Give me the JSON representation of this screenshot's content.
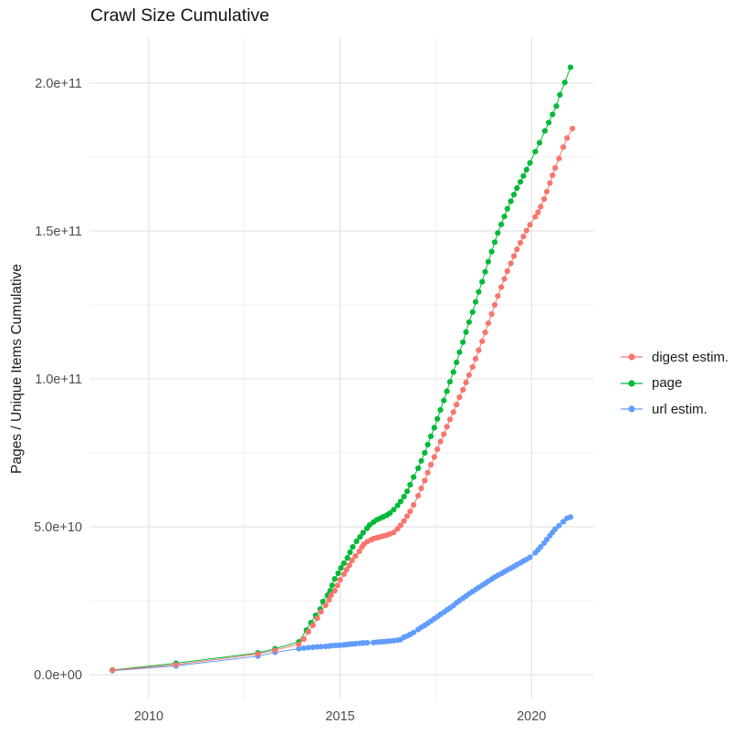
{
  "chart_data": {
    "type": "scatter",
    "title": "Crawl Size Cumulative",
    "xlabel": "",
    "ylabel": "Pages / Unique Items Cumulative",
    "value_unit_e9": "values are billions (1e9) of pages / unique items",
    "grid": true,
    "legend_position": "right",
    "xlim": [
      2008.45,
      2021.64
    ],
    "ylim_e9": [
      -8.3,
      215.4
    ],
    "xticks": [
      {
        "value": 2010,
        "label": "2010"
      },
      {
        "value": 2015,
        "label": "2015"
      },
      {
        "value": 2020,
        "label": "2020"
      }
    ],
    "xminor": [
      2012.5,
      2017.5
    ],
    "yticks": [
      {
        "value_e9": 0,
        "label": "0.0e+00"
      },
      {
        "value_e9": 50,
        "label": "5.0e+10"
      },
      {
        "value_e9": 100,
        "label": "1.0e+11"
      },
      {
        "value_e9": 150,
        "label": "1.5e+11"
      },
      {
        "value_e9": 200,
        "label": "2.0e+11"
      }
    ],
    "yminor_e9": [
      25,
      75,
      125,
      175
    ],
    "series": [
      {
        "name": "digest estim.",
        "color": "#F8766D",
        "points": [
          [
            2009.05,
            1.5
          ],
          [
            2010.71,
            3.4
          ],
          [
            2012.85,
            7.0
          ],
          [
            2013.3,
            8.3
          ],
          [
            2013.92,
            10.3
          ],
          [
            2014.05,
            12.0
          ],
          [
            2014.17,
            14.5
          ],
          [
            2014.29,
            16.7
          ],
          [
            2014.4,
            19.1
          ],
          [
            2014.5,
            21.3
          ],
          [
            2014.62,
            23.5
          ],
          [
            2014.71,
            25.3
          ],
          [
            2014.76,
            26.9
          ],
          [
            2014.86,
            28.4
          ],
          [
            2014.93,
            30.2
          ],
          [
            2015.0,
            32.1
          ],
          [
            2015.1,
            34.0
          ],
          [
            2015.17,
            35.5
          ],
          [
            2015.24,
            37.0
          ],
          [
            2015.31,
            38.6
          ],
          [
            2015.4,
            40.1
          ],
          [
            2015.5,
            41.7
          ],
          [
            2015.57,
            43.2
          ],
          [
            2015.62,
            44.1
          ],
          [
            2015.71,
            45.0
          ],
          [
            2015.81,
            45.6
          ],
          [
            2015.87,
            46.0
          ],
          [
            2015.96,
            46.3
          ],
          [
            2016.05,
            46.6
          ],
          [
            2016.13,
            46.9
          ],
          [
            2016.22,
            47.2
          ],
          [
            2016.3,
            47.6
          ],
          [
            2016.4,
            48.1
          ],
          [
            2016.5,
            49.3
          ],
          [
            2016.58,
            50.5
          ],
          [
            2016.67,
            52.0
          ],
          [
            2016.75,
            53.6
          ],
          [
            2016.83,
            55.2
          ],
          [
            2016.92,
            57.4
          ],
          [
            2017.04,
            60.5
          ],
          [
            2017.12,
            63.0
          ],
          [
            2017.21,
            65.6
          ],
          [
            2017.29,
            68.3
          ],
          [
            2017.37,
            71.0
          ],
          [
            2017.46,
            73.6
          ],
          [
            2017.54,
            76.2
          ],
          [
            2017.62,
            78.8
          ],
          [
            2017.71,
            81.3
          ],
          [
            2017.79,
            83.8
          ],
          [
            2017.87,
            86.3
          ],
          [
            2017.96,
            88.8
          ],
          [
            2018.04,
            91.3
          ],
          [
            2018.12,
            93.8
          ],
          [
            2018.21,
            96.3
          ],
          [
            2018.29,
            98.8
          ],
          [
            2018.37,
            101.3
          ],
          [
            2018.46,
            104.0
          ],
          [
            2018.54,
            106.8
          ],
          [
            2018.62,
            109.7
          ],
          [
            2018.71,
            112.7
          ],
          [
            2018.79,
            115.7
          ],
          [
            2018.87,
            118.8
          ],
          [
            2018.96,
            121.9
          ],
          [
            2019.04,
            125.0
          ],
          [
            2019.12,
            128.0
          ],
          [
            2019.21,
            131.0
          ],
          [
            2019.29,
            133.8
          ],
          [
            2019.37,
            136.4
          ],
          [
            2019.46,
            139.0
          ],
          [
            2019.54,
            141.5
          ],
          [
            2019.62,
            143.8
          ],
          [
            2019.71,
            146.0
          ],
          [
            2019.79,
            148.1
          ],
          [
            2019.87,
            150.1
          ],
          [
            2019.96,
            152.1
          ],
          [
            2020.1,
            154.8
          ],
          [
            2020.17,
            156.3
          ],
          [
            2020.24,
            158.2
          ],
          [
            2020.33,
            160.8
          ],
          [
            2020.4,
            163.3
          ],
          [
            2020.48,
            166.2
          ],
          [
            2020.55,
            168.8
          ],
          [
            2020.62,
            171.3
          ],
          [
            2020.72,
            174.5
          ],
          [
            2020.83,
            178.3
          ],
          [
            2020.93,
            181.4
          ],
          [
            2021.07,
            184.6
          ]
        ]
      },
      {
        "name": "page",
        "color": "#00BA38",
        "points": [
          [
            2009.05,
            1.6
          ],
          [
            2010.71,
            3.9
          ],
          [
            2012.85,
            7.4
          ],
          [
            2013.3,
            8.8
          ],
          [
            2013.92,
            11.1
          ],
          [
            2014.12,
            15.1
          ],
          [
            2014.24,
            17.6
          ],
          [
            2014.36,
            20.1
          ],
          [
            2014.48,
            22.2
          ],
          [
            2014.55,
            24.7
          ],
          [
            2014.67,
            26.9
          ],
          [
            2014.74,
            28.4
          ],
          [
            2014.79,
            30.2
          ],
          [
            2014.86,
            32.4
          ],
          [
            2014.95,
            34.3
          ],
          [
            2015.02,
            36.1
          ],
          [
            2015.1,
            37.7
          ],
          [
            2015.19,
            39.5
          ],
          [
            2015.26,
            41.4
          ],
          [
            2015.33,
            43.2
          ],
          [
            2015.43,
            45.1
          ],
          [
            2015.52,
            46.6
          ],
          [
            2015.6,
            48.0
          ],
          [
            2015.7,
            49.5
          ],
          [
            2015.77,
            50.6
          ],
          [
            2015.87,
            51.6
          ],
          [
            2015.96,
            52.4
          ],
          [
            2016.05,
            52.9
          ],
          [
            2016.13,
            53.4
          ],
          [
            2016.22,
            53.9
          ],
          [
            2016.3,
            54.6
          ],
          [
            2016.4,
            55.8
          ],
          [
            2016.5,
            57.2
          ],
          [
            2016.58,
            58.6
          ],
          [
            2016.67,
            60.2
          ],
          [
            2016.75,
            62.0
          ],
          [
            2016.83,
            64.2
          ],
          [
            2016.92,
            66.8
          ],
          [
            2017.04,
            69.8
          ],
          [
            2017.12,
            72.3
          ],
          [
            2017.21,
            75.0
          ],
          [
            2017.29,
            77.8
          ],
          [
            2017.37,
            80.6
          ],
          [
            2017.46,
            83.5
          ],
          [
            2017.54,
            86.5
          ],
          [
            2017.62,
            89.5
          ],
          [
            2017.71,
            92.7
          ],
          [
            2017.79,
            95.8
          ],
          [
            2017.87,
            99.0
          ],
          [
            2017.96,
            102.3
          ],
          [
            2018.04,
            105.6
          ],
          [
            2018.12,
            109.0
          ],
          [
            2018.21,
            112.4
          ],
          [
            2018.29,
            115.8
          ],
          [
            2018.37,
            119.2
          ],
          [
            2018.46,
            122.6
          ],
          [
            2018.54,
            126.0
          ],
          [
            2018.62,
            129.4
          ],
          [
            2018.71,
            132.8
          ],
          [
            2018.79,
            136.2
          ],
          [
            2018.87,
            139.6
          ],
          [
            2018.96,
            143.0
          ],
          [
            2019.04,
            146.2
          ],
          [
            2019.12,
            149.3
          ],
          [
            2019.21,
            152.2
          ],
          [
            2019.29,
            154.9
          ],
          [
            2019.37,
            157.5
          ],
          [
            2019.46,
            160.0
          ],
          [
            2019.54,
            162.3
          ],
          [
            2019.62,
            164.5
          ],
          [
            2019.71,
            166.6
          ],
          [
            2019.79,
            168.6
          ],
          [
            2019.87,
            170.7
          ],
          [
            2019.96,
            173.0
          ],
          [
            2020.1,
            176.8
          ],
          [
            2020.21,
            179.8
          ],
          [
            2020.35,
            183.8
          ],
          [
            2020.45,
            186.6
          ],
          [
            2020.55,
            189.4
          ],
          [
            2020.65,
            192.2
          ],
          [
            2020.74,
            196.0
          ],
          [
            2020.87,
            200.2
          ],
          [
            2021.02,
            205.3
          ]
        ]
      },
      {
        "name": "url estim.",
        "color": "#619CFF",
        "points": [
          [
            2009.05,
            1.4
          ],
          [
            2010.71,
            3.0
          ],
          [
            2012.85,
            6.3
          ],
          [
            2013.3,
            7.6
          ],
          [
            2013.92,
            8.8
          ],
          [
            2014.05,
            9.0
          ],
          [
            2014.17,
            9.2
          ],
          [
            2014.29,
            9.3
          ],
          [
            2014.4,
            9.4
          ],
          [
            2014.5,
            9.5
          ],
          [
            2014.62,
            9.6
          ],
          [
            2014.71,
            9.7
          ],
          [
            2014.76,
            9.8
          ],
          [
            2014.86,
            9.9
          ],
          [
            2014.93,
            9.95
          ],
          [
            2015.0,
            10.0
          ],
          [
            2015.1,
            10.1
          ],
          [
            2015.17,
            10.2
          ],
          [
            2015.24,
            10.3
          ],
          [
            2015.31,
            10.4
          ],
          [
            2015.4,
            10.5
          ],
          [
            2015.5,
            10.6
          ],
          [
            2015.57,
            10.7
          ],
          [
            2015.62,
            10.75
          ],
          [
            2015.71,
            10.8
          ],
          [
            2015.87,
            10.9
          ],
          [
            2015.96,
            11.0
          ],
          [
            2016.05,
            11.1
          ],
          [
            2016.13,
            11.2
          ],
          [
            2016.22,
            11.3
          ],
          [
            2016.3,
            11.4
          ],
          [
            2016.4,
            11.5
          ],
          [
            2016.5,
            11.7
          ],
          [
            2016.58,
            11.9
          ],
          [
            2016.67,
            12.7
          ],
          [
            2016.75,
            13.1
          ],
          [
            2016.83,
            13.6
          ],
          [
            2016.92,
            14.3
          ],
          [
            2017.04,
            15.3
          ],
          [
            2017.12,
            16.0
          ],
          [
            2017.21,
            16.7
          ],
          [
            2017.29,
            17.4
          ],
          [
            2017.37,
            18.1
          ],
          [
            2017.46,
            18.9
          ],
          [
            2017.54,
            19.6
          ],
          [
            2017.62,
            20.4
          ],
          [
            2017.71,
            21.1
          ],
          [
            2017.79,
            21.9
          ],
          [
            2017.87,
            22.6
          ],
          [
            2017.96,
            23.4
          ],
          [
            2018.04,
            24.3
          ],
          [
            2018.12,
            25.1
          ],
          [
            2018.21,
            25.9
          ],
          [
            2018.29,
            26.6
          ],
          [
            2018.37,
            27.4
          ],
          [
            2018.46,
            28.1
          ],
          [
            2018.54,
            28.8
          ],
          [
            2018.62,
            29.5
          ],
          [
            2018.71,
            30.2
          ],
          [
            2018.79,
            30.9
          ],
          [
            2018.87,
            31.6
          ],
          [
            2018.96,
            32.3
          ],
          [
            2019.04,
            33.0
          ],
          [
            2019.12,
            33.6
          ],
          [
            2019.21,
            34.2
          ],
          [
            2019.29,
            34.8
          ],
          [
            2019.37,
            35.4
          ],
          [
            2019.46,
            36.0
          ],
          [
            2019.54,
            36.6
          ],
          [
            2019.62,
            37.2
          ],
          [
            2019.71,
            37.8
          ],
          [
            2019.79,
            38.4
          ],
          [
            2019.87,
            39.0
          ],
          [
            2019.96,
            39.7
          ],
          [
            2020.1,
            41.2
          ],
          [
            2020.17,
            42.2
          ],
          [
            2020.24,
            43.2
          ],
          [
            2020.33,
            44.5
          ],
          [
            2020.4,
            45.7
          ],
          [
            2020.48,
            47.0
          ],
          [
            2020.55,
            48.1
          ],
          [
            2020.62,
            49.2
          ],
          [
            2020.72,
            50.4
          ],
          [
            2020.83,
            51.7
          ],
          [
            2020.93,
            52.9
          ],
          [
            2021.02,
            53.3
          ]
        ]
      }
    ]
  }
}
